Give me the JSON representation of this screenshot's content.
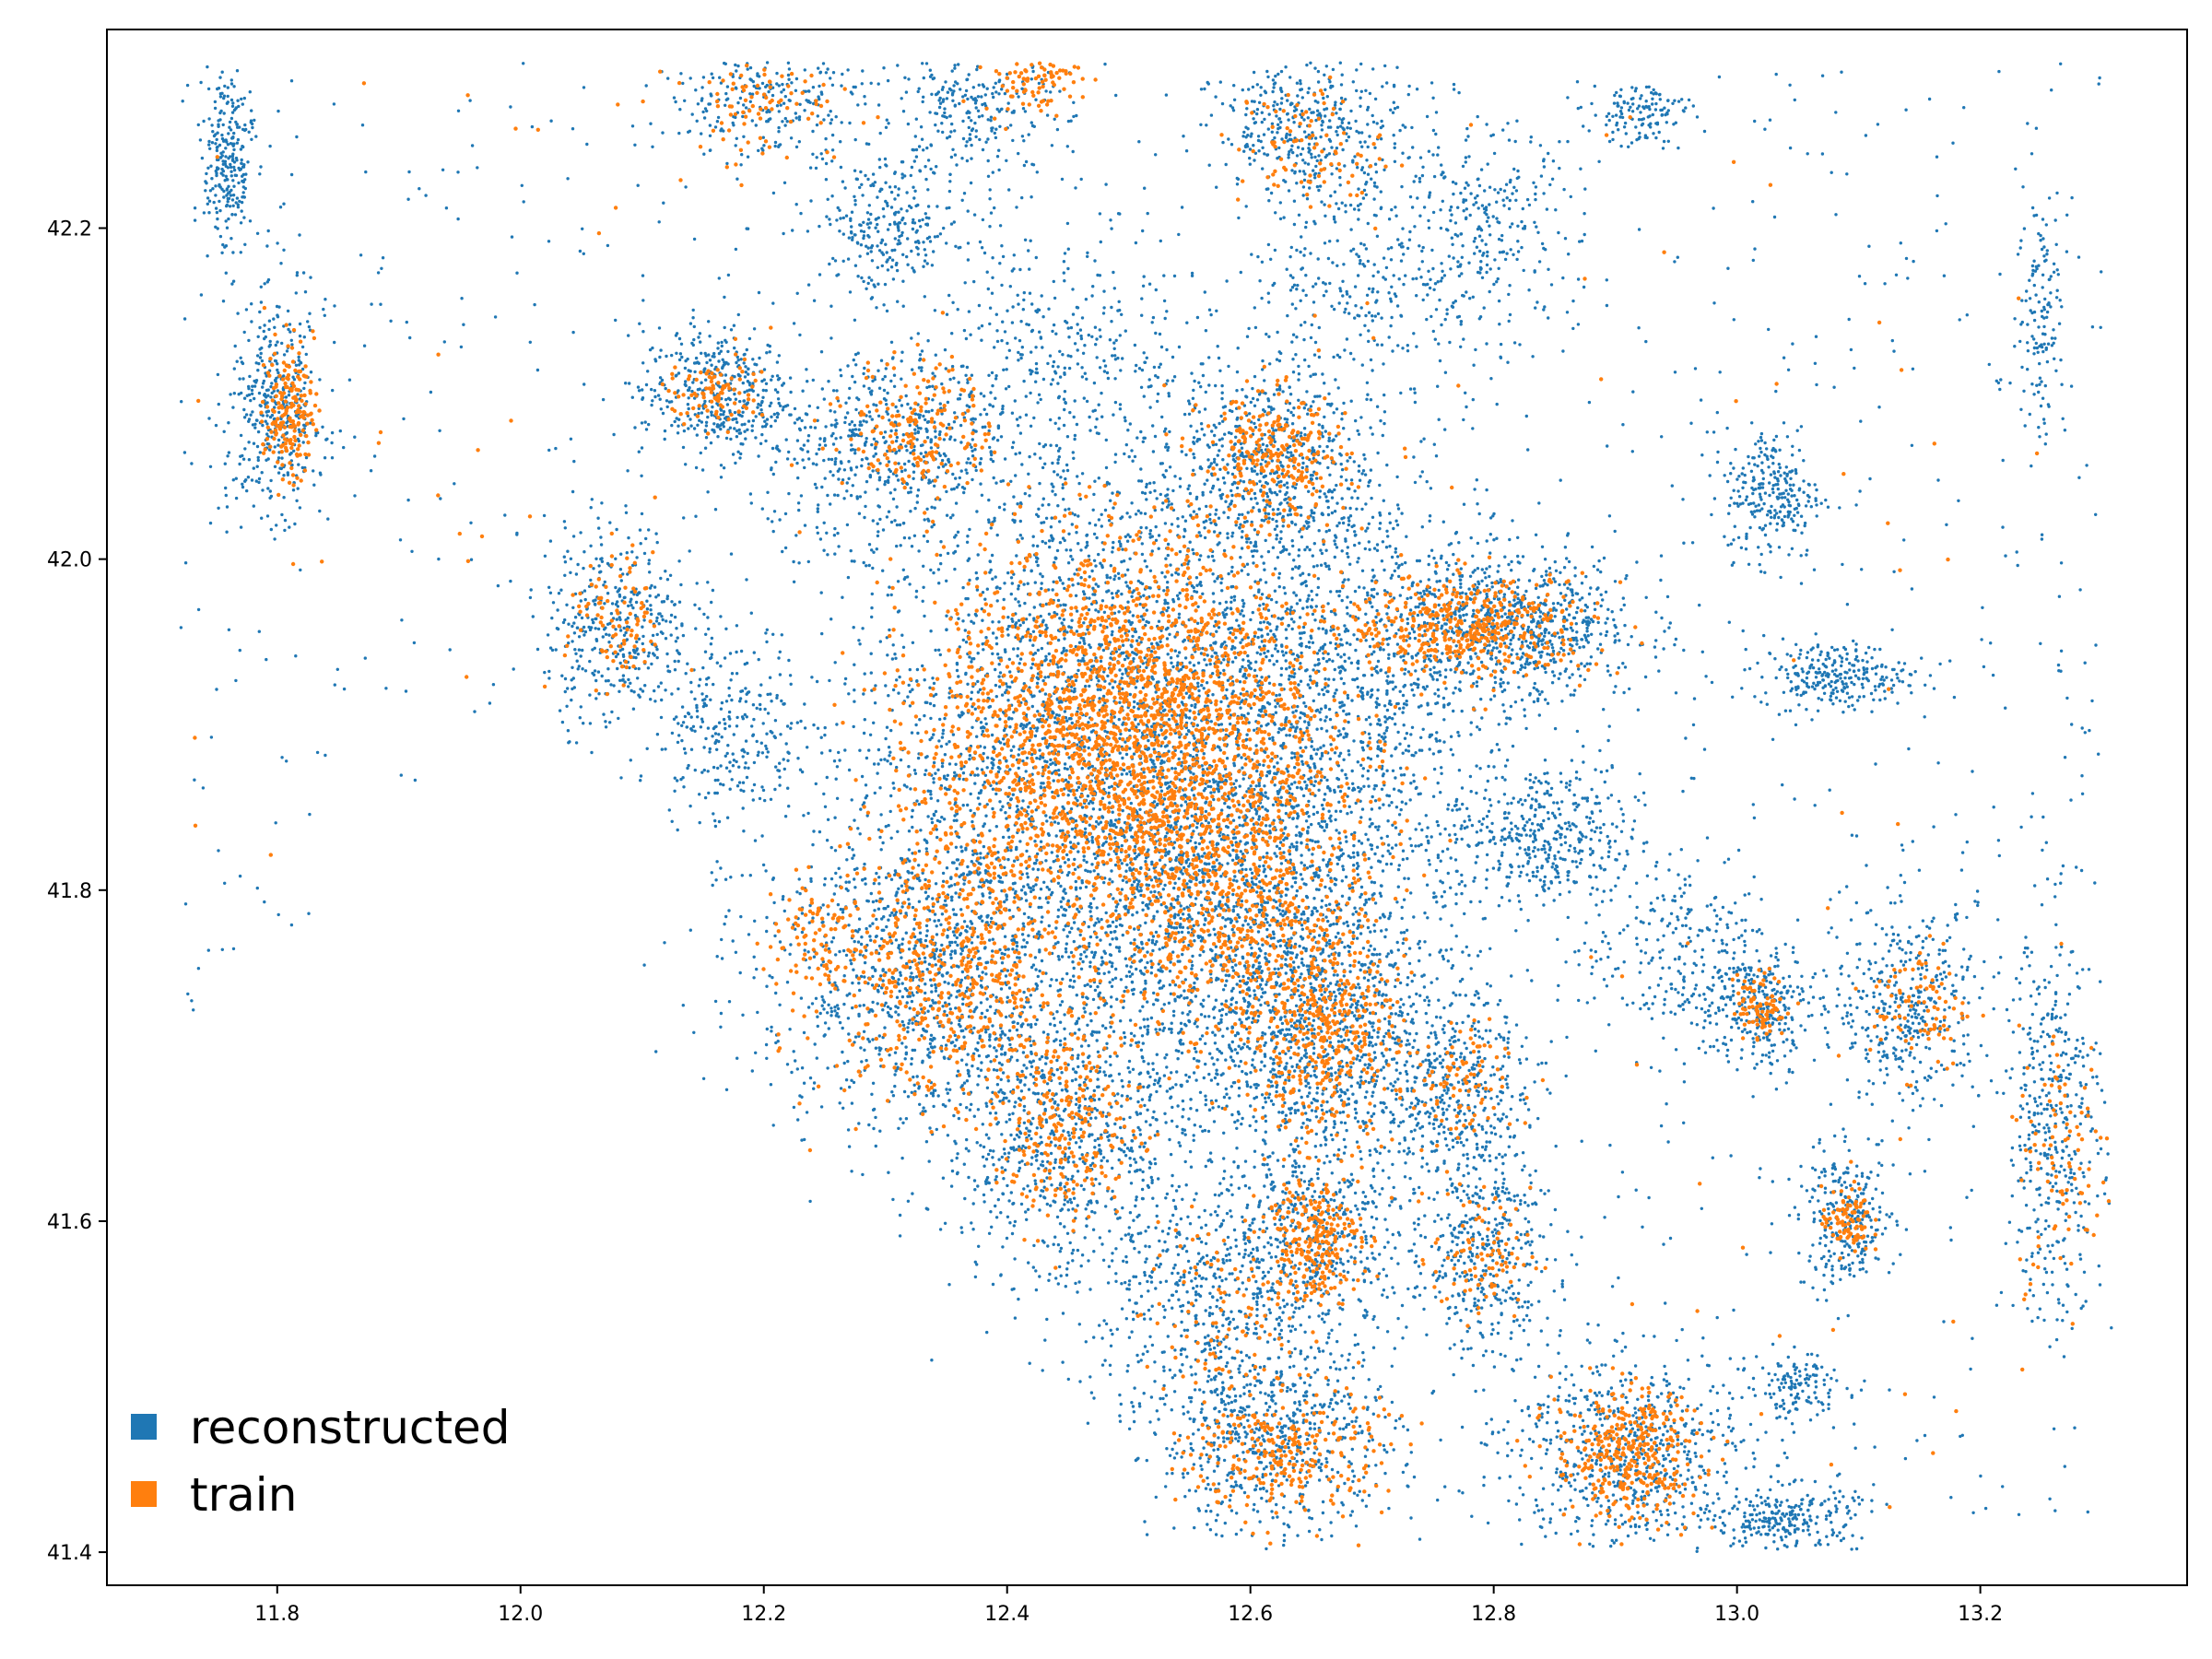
{
  "chart_data": {
    "type": "scatter",
    "title": "",
    "xlabel": "",
    "ylabel": "",
    "xlim": [
      11.66,
      13.37
    ],
    "ylim": [
      41.38,
      42.32
    ],
    "x_ticks": [
      11.8,
      12.0,
      12.2,
      12.4,
      12.6,
      12.8,
      13.0,
      13.2
    ],
    "y_ticks": [
      41.4,
      41.6,
      41.8,
      42.0,
      42.2
    ],
    "x_tick_labels": [
      "11.8",
      "12.0",
      "12.2",
      "12.4",
      "12.6",
      "12.8",
      "13.0",
      "13.2"
    ],
    "y_tick_labels": [
      "41.4",
      "41.6",
      "41.8",
      "42.0",
      "42.2"
    ],
    "grid": false,
    "legend_position": "lower-left",
    "series": [
      {
        "name": "reconstructed",
        "color": "#1f77b4",
        "description_clusters": [
          {
            "x": 12.5,
            "y": 41.89,
            "spread_x": 0.12,
            "spread_y": 0.09,
            "weight": 30
          },
          {
            "x": 12.6,
            "y": 41.78,
            "spread_x": 0.08,
            "spread_y": 0.06,
            "weight": 10
          },
          {
            "x": 12.33,
            "y": 41.75,
            "spread_x": 0.07,
            "spread_y": 0.05,
            "weight": 8
          },
          {
            "x": 12.66,
            "y": 41.71,
            "spread_x": 0.05,
            "spread_y": 0.04,
            "weight": 6
          },
          {
            "x": 12.7,
            "y": 41.95,
            "spread_x": 0.08,
            "spread_y": 0.05,
            "weight": 6
          },
          {
            "x": 12.82,
            "y": 41.96,
            "spread_x": 0.05,
            "spread_y": 0.02,
            "weight": 5
          },
          {
            "x": 12.45,
            "y": 41.65,
            "spread_x": 0.05,
            "spread_y": 0.05,
            "weight": 6
          },
          {
            "x": 12.65,
            "y": 41.59,
            "spread_x": 0.04,
            "spread_y": 0.03,
            "weight": 4
          },
          {
            "x": 12.62,
            "y": 41.47,
            "spread_x": 0.05,
            "spread_y": 0.03,
            "weight": 5
          },
          {
            "x": 12.91,
            "y": 41.46,
            "spread_x": 0.05,
            "spread_y": 0.03,
            "weight": 5
          },
          {
            "x": 12.79,
            "y": 41.58,
            "spread_x": 0.03,
            "spread_y": 0.03,
            "weight": 3
          },
          {
            "x": 12.62,
            "y": 42.06,
            "spread_x": 0.04,
            "spread_y": 0.03,
            "weight": 4
          },
          {
            "x": 12.3,
            "y": 42.07,
            "spread_x": 0.05,
            "spread_y": 0.03,
            "weight": 4
          },
          {
            "x": 12.16,
            "y": 42.1,
            "spread_x": 0.03,
            "spread_y": 0.02,
            "weight": 3
          },
          {
            "x": 12.08,
            "y": 41.96,
            "spread_x": 0.03,
            "spread_y": 0.03,
            "weight": 3
          },
          {
            "x": 11.8,
            "y": 42.09,
            "spread_x": 0.02,
            "spread_y": 0.03,
            "weight": 3
          },
          {
            "x": 11.76,
            "y": 42.24,
            "spread_x": 0.01,
            "spread_y": 0.03,
            "weight": 2
          },
          {
            "x": 12.65,
            "y": 42.26,
            "spread_x": 0.04,
            "spread_y": 0.02,
            "weight": 3
          },
          {
            "x": 12.2,
            "y": 42.28,
            "spread_x": 0.04,
            "spread_y": 0.02,
            "weight": 2
          },
          {
            "x": 12.37,
            "y": 42.27,
            "spread_x": 0.04,
            "spread_y": 0.02,
            "weight": 2
          },
          {
            "x": 13.14,
            "y": 41.73,
            "spread_x": 0.03,
            "spread_y": 0.03,
            "weight": 3
          },
          {
            "x": 13.26,
            "y": 41.66,
            "spread_x": 0.02,
            "spread_y": 0.06,
            "weight": 3
          },
          {
            "x": 13.09,
            "y": 41.6,
            "spread_x": 0.02,
            "spread_y": 0.02,
            "weight": 2
          },
          {
            "x": 13.02,
            "y": 41.73,
            "spread_x": 0.02,
            "spread_y": 0.02,
            "weight": 2
          },
          {
            "x": 13.04,
            "y": 41.42,
            "spread_x": 0.03,
            "spread_y": 0.01,
            "weight": 2
          },
          {
            "x": 13.05,
            "y": 41.5,
            "spread_x": 0.02,
            "spread_y": 0.01,
            "weight": 1
          },
          {
            "x": 12.77,
            "y": 41.68,
            "spread_x": 0.03,
            "spread_y": 0.03,
            "weight": 3
          },
          {
            "x": 12.84,
            "y": 41.83,
            "spread_x": 0.04,
            "spread_y": 0.02,
            "weight": 3
          },
          {
            "x": 13.03,
            "y": 42.04,
            "spread_x": 0.02,
            "spread_y": 0.02,
            "weight": 2
          },
          {
            "x": 13.08,
            "y": 41.93,
            "spread_x": 0.03,
            "spread_y": 0.01,
            "weight": 2
          },
          {
            "x": 12.95,
            "y": 41.76,
            "spread_x": 0.04,
            "spread_y": 0.03,
            "weight": 2
          },
          {
            "x": 12.17,
            "y": 41.9,
            "spread_x": 0.03,
            "spread_y": 0.03,
            "weight": 2
          },
          {
            "x": 12.56,
            "y": 41.55,
            "spread_x": 0.04,
            "spread_y": 0.04,
            "weight": 3
          },
          {
            "x": 12.3,
            "y": 42.2,
            "spread_x": 0.03,
            "spread_y": 0.02,
            "weight": 2
          },
          {
            "x": 12.45,
            "y": 42.12,
            "spread_x": 0.06,
            "spread_y": 0.04,
            "weight": 3
          },
          {
            "x": 12.7,
            "y": 42.17,
            "spread_x": 0.05,
            "spread_y": 0.03,
            "weight": 2
          },
          {
            "x": 12.92,
            "y": 42.27,
            "spread_x": 0.02,
            "spread_y": 0.01,
            "weight": 1
          },
          {
            "x": 12.79,
            "y": 42.2,
            "spread_x": 0.04,
            "spread_y": 0.03,
            "weight": 2
          },
          {
            "x": 13.25,
            "y": 42.15,
            "spread_x": 0.01,
            "spread_y": 0.04,
            "weight": 1
          },
          {
            "x": 13.03,
            "y": 41.27,
            "spread_x": 0.0,
            "spread_y": 0.0,
            "weight": 0
          }
        ]
      },
      {
        "name": "train",
        "color": "#ff7f0e",
        "description_clusters": [
          {
            "x": 12.5,
            "y": 41.89,
            "spread_x": 0.08,
            "spread_y": 0.06,
            "weight": 30
          },
          {
            "x": 12.35,
            "y": 41.75,
            "spread_x": 0.05,
            "spread_y": 0.04,
            "weight": 6
          },
          {
            "x": 12.6,
            "y": 41.78,
            "spread_x": 0.05,
            "spread_y": 0.04,
            "weight": 6
          },
          {
            "x": 12.66,
            "y": 41.71,
            "spread_x": 0.03,
            "spread_y": 0.03,
            "weight": 4
          },
          {
            "x": 12.78,
            "y": 41.96,
            "spread_x": 0.05,
            "spread_y": 0.015,
            "weight": 5
          },
          {
            "x": 12.62,
            "y": 42.06,
            "spread_x": 0.03,
            "spread_y": 0.02,
            "weight": 3
          },
          {
            "x": 12.45,
            "y": 41.66,
            "spread_x": 0.03,
            "spread_y": 0.03,
            "weight": 3
          },
          {
            "x": 12.65,
            "y": 41.59,
            "spread_x": 0.02,
            "spread_y": 0.02,
            "weight": 3
          },
          {
            "x": 12.63,
            "y": 41.46,
            "spread_x": 0.04,
            "spread_y": 0.02,
            "weight": 3
          },
          {
            "x": 12.91,
            "y": 41.46,
            "spread_x": 0.03,
            "spread_y": 0.02,
            "weight": 4
          },
          {
            "x": 11.81,
            "y": 42.09,
            "spread_x": 0.01,
            "spread_y": 0.02,
            "weight": 2
          },
          {
            "x": 12.33,
            "y": 42.08,
            "spread_x": 0.03,
            "spread_y": 0.02,
            "weight": 2
          },
          {
            "x": 12.16,
            "y": 42.1,
            "spread_x": 0.02,
            "spread_y": 0.01,
            "weight": 1
          },
          {
            "x": 12.08,
            "y": 41.96,
            "spread_x": 0.02,
            "spread_y": 0.02,
            "weight": 1
          },
          {
            "x": 12.77,
            "y": 41.68,
            "spread_x": 0.02,
            "spread_y": 0.02,
            "weight": 1
          },
          {
            "x": 12.79,
            "y": 41.58,
            "spread_x": 0.02,
            "spread_y": 0.02,
            "weight": 1
          },
          {
            "x": 13.15,
            "y": 41.73,
            "spread_x": 0.02,
            "spread_y": 0.02,
            "weight": 1
          },
          {
            "x": 13.27,
            "y": 41.64,
            "spread_x": 0.02,
            "spread_y": 0.04,
            "weight": 1
          },
          {
            "x": 12.2,
            "y": 42.28,
            "spread_x": 0.03,
            "spread_y": 0.02,
            "weight": 1
          },
          {
            "x": 12.42,
            "y": 42.29,
            "spread_x": 0.02,
            "spread_y": 0.01,
            "weight": 1
          },
          {
            "x": 12.65,
            "y": 42.25,
            "spread_x": 0.03,
            "spread_y": 0.02,
            "weight": 1
          },
          {
            "x": 12.57,
            "y": 41.54,
            "spread_x": 0.03,
            "spread_y": 0.03,
            "weight": 1
          },
          {
            "x": 12.24,
            "y": 41.77,
            "spread_x": 0.02,
            "spread_y": 0.02,
            "weight": 1
          },
          {
            "x": 13.09,
            "y": 41.6,
            "spread_x": 0.01,
            "spread_y": 0.01,
            "weight": 1
          },
          {
            "x": 13.02,
            "y": 41.73,
            "spread_x": 0.01,
            "spread_y": 0.01,
            "weight": 1
          }
        ]
      }
    ],
    "legend": [
      {
        "label": "reconstructed",
        "color": "#1f77b4"
      },
      {
        "label": "train",
        "color": "#ff7f0e"
      }
    ]
  }
}
